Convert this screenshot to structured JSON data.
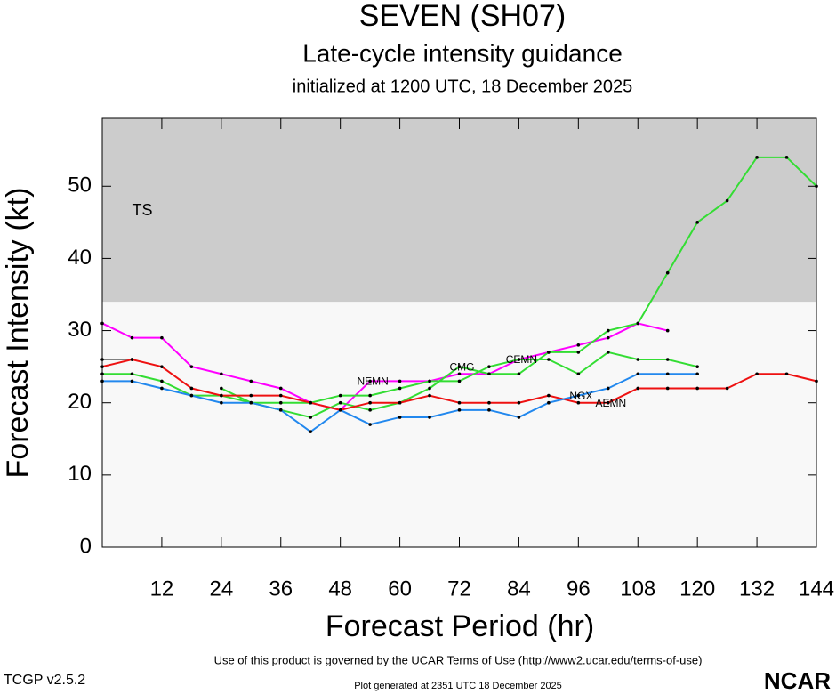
{
  "chart_data": {
    "type": "line",
    "title": "SEVEN (SH07)",
    "subtitle": "Late-cycle intensity guidance",
    "init_label": "initialized at 1200 UTC, 18 December 2025",
    "xlabel": "Forecast Period (hr)",
    "ylabel": "Forecast Intensity (kt)",
    "x": [
      0,
      6,
      12,
      18,
      24,
      30,
      36,
      42,
      48,
      54,
      60,
      66,
      72,
      78,
      84,
      90,
      96,
      102,
      108,
      114,
      120,
      126,
      132,
      138,
      144
    ],
    "xlim": [
      0,
      144
    ],
    "xticks": [
      12,
      24,
      36,
      48,
      60,
      72,
      84,
      96,
      108,
      120,
      132,
      144
    ],
    "ylim": [
      0,
      59.4
    ],
    "yticks": [
      0,
      10,
      20,
      30,
      40,
      50
    ],
    "bands": [
      {
        "label": "TS",
        "from": 34,
        "to": 59.4,
        "color": "#cccccc"
      }
    ],
    "series": [
      {
        "color": "#808080",
        "values": [
          26,
          26,
          null,
          null,
          null,
          null,
          null,
          null,
          null,
          null,
          null,
          null,
          null,
          null,
          null,
          null,
          null,
          null,
          null,
          null,
          null,
          null,
          null,
          null,
          null
        ]
      },
      {
        "name": "NEMN",
        "color": "#ff00ff",
        "values": [
          31,
          29,
          29,
          25,
          24,
          23,
          22,
          20,
          19,
          23,
          23,
          23,
          24,
          24,
          26,
          27,
          28,
          29,
          31,
          30,
          null,
          null,
          null,
          null,
          null
        ]
      },
      {
        "name": "CMG",
        "color": "#33dd33",
        "values": [
          24,
          24,
          23,
          21,
          21,
          20,
          19,
          18,
          20,
          19,
          20,
          22,
          25,
          24,
          24,
          27,
          27,
          30,
          31,
          38,
          45,
          48,
          54,
          54,
          50
        ]
      },
      {
        "name": "CEMN",
        "color": "#33dd33",
        "values": [
          null,
          null,
          null,
          null,
          22,
          20,
          20,
          20,
          21,
          21,
          22,
          23,
          23,
          25,
          26,
          26,
          24,
          27,
          26,
          26,
          25,
          null,
          null,
          null,
          null
        ]
      },
      {
        "name": "AEMN",
        "color": "#ee1111",
        "values": [
          25,
          26,
          25,
          22,
          21,
          21,
          21,
          20,
          19,
          20,
          20,
          21,
          20,
          20,
          20,
          21,
          20,
          20,
          22,
          22,
          22,
          22,
          24,
          24,
          23
        ]
      },
      {
        "name": "NGX",
        "color": "#2288ee",
        "values": [
          23,
          23,
          22,
          21,
          20,
          20,
          19,
          16,
          19,
          17,
          18,
          18,
          19,
          19,
          18,
          20,
          21,
          22,
          24,
          24,
          24,
          null,
          null,
          null,
          null
        ]
      }
    ],
    "terms": "Use of this product is governed by the UCAR Terms of Use (http://www2.ucar.edu/terms-of-use)",
    "version": "TCGP v2.5.2",
    "generated": "Plot generated at 2351 UTC   18 December 2025",
    "logo": "NCAR"
  }
}
